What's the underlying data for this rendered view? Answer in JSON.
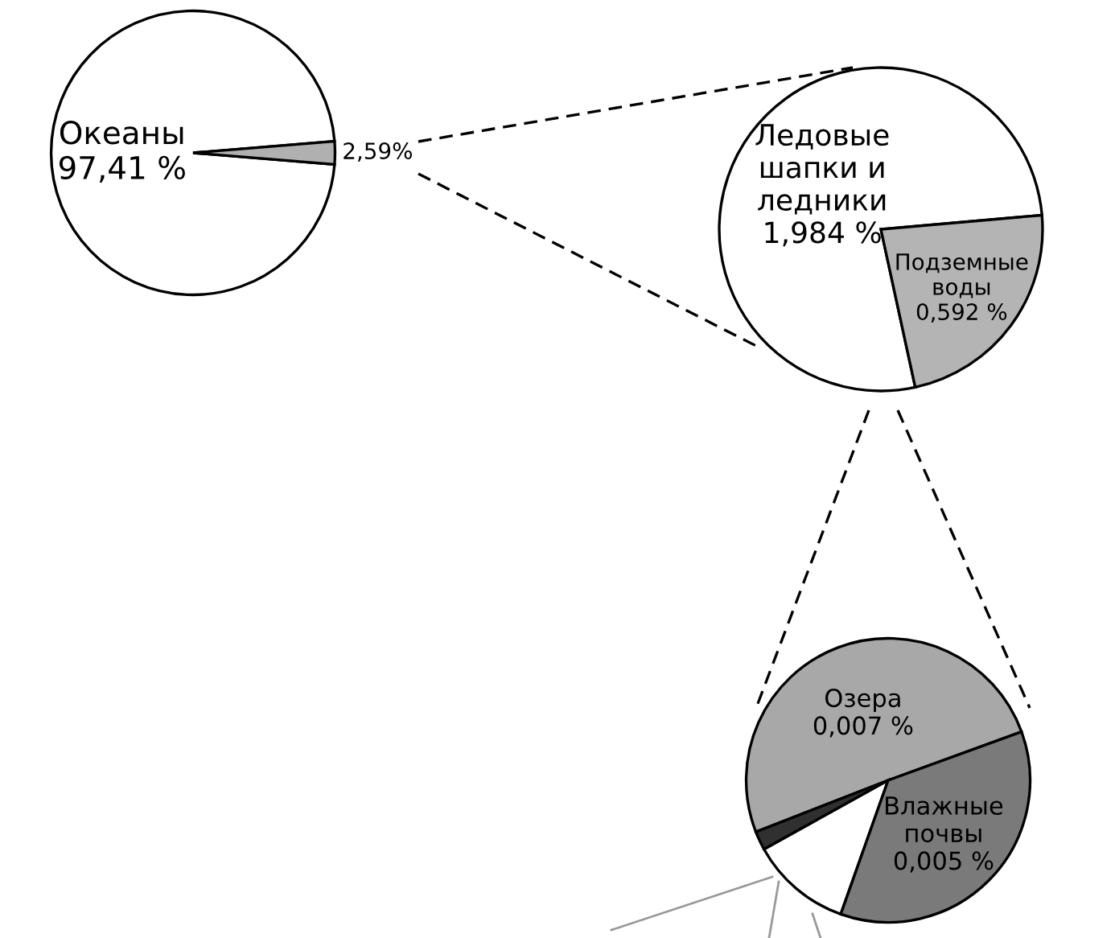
{
  "chart_data": [
    {
      "type": "pie",
      "categories": [
        "Океаны",
        null
      ],
      "values": [
        97.41,
        2.59
      ],
      "value_labels": [
        "97,41 %",
        "2,59%"
      ],
      "colors": [
        "#ffffff",
        "#b0b0b0"
      ]
    },
    {
      "type": "pie",
      "categories": [
        "Ледовые\nшапки и\nледники",
        "Подземные\nводы"
      ],
      "values": [
        1.984,
        0.592
      ],
      "value_labels": [
        "1,984 %",
        "0,592 %"
      ],
      "colors": [
        "#ffffff",
        "#b4b4b4"
      ]
    },
    {
      "type": "pie",
      "categories": [
        "Озера",
        null,
        null,
        "Влажные\nпочвы"
      ],
      "values": [
        0.007,
        0.0003,
        0.0016,
        0.005
      ],
      "value_labels": [
        "0,007 %",
        null,
        null,
        "0,005 %"
      ],
      "colors": [
        "#a8a8a8",
        "#303030",
        "#ffffff",
        "#7a7a7a"
      ]
    }
  ]
}
